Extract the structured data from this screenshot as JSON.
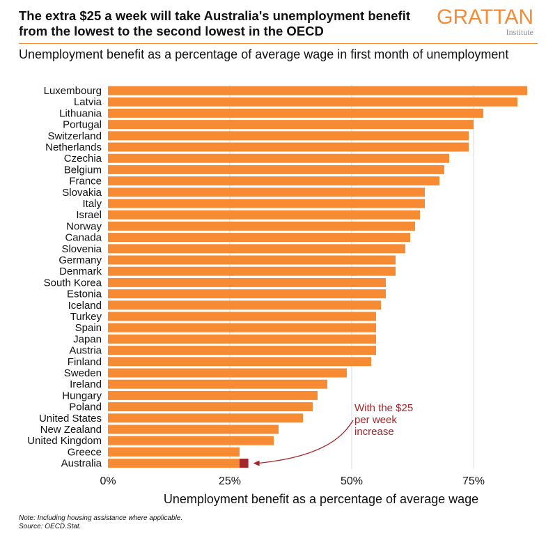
{
  "header": {
    "title": "The extra $25 a week will take Australia's unemployment benefit from the lowest to the second lowest in the OECD",
    "subtitle": "Unemployment benefit as a percentage of average wage in first month of unemployment"
  },
  "logo": {
    "name": "GRATTAN",
    "subname": "Institute"
  },
  "annotation": {
    "lines": [
      "With the $25",
      "per week",
      "increase"
    ]
  },
  "footer": {
    "note": "Note: Including housing assistance where applicable.",
    "source": "Source: OECD.Stat."
  },
  "colors": {
    "bar": "#f68b33",
    "highlight": "#a4262c",
    "annotation": "#a4262c",
    "rule": "#f68b33"
  },
  "chart_data": {
    "type": "bar",
    "orientation": "horizontal",
    "xlabel": "Unemployment benefit as a percentage of average wage",
    "xlim": [
      0,
      0.86
    ],
    "xticks": [
      0,
      0.25,
      0.5,
      0.75
    ],
    "xtick_labels": [
      "0%",
      "25%",
      "50%",
      "75%"
    ],
    "grid": "vertical",
    "categories": [
      "Luxembourg",
      "Latvia",
      "Lithuania",
      "Portugal",
      "Switzerland",
      "Netherlands",
      "Czechia",
      "Belgium",
      "France",
      "Slovakia",
      "Italy",
      "Israel",
      "Norway",
      "Canada",
      "Slovenia",
      "Germany",
      "Denmark",
      "South Korea",
      "Estonia",
      "Iceland",
      "Turkey",
      "Spain",
      "Japan",
      "Austria",
      "Finland",
      "Sweden",
      "Ireland",
      "Hungary",
      "Poland",
      "United States",
      "New Zealand",
      "United Kingdom",
      "Greece",
      "Australia"
    ],
    "values": [
      0.86,
      0.84,
      0.77,
      0.75,
      0.74,
      0.74,
      0.7,
      0.69,
      0.68,
      0.65,
      0.65,
      0.64,
      0.63,
      0.62,
      0.61,
      0.59,
      0.59,
      0.57,
      0.57,
      0.56,
      0.55,
      0.55,
      0.55,
      0.55,
      0.54,
      0.49,
      0.45,
      0.43,
      0.42,
      0.4,
      0.35,
      0.34,
      0.27,
      0.27
    ],
    "extra_segment": {
      "category": "Australia",
      "from": 0.27,
      "to": 0.288
    }
  }
}
